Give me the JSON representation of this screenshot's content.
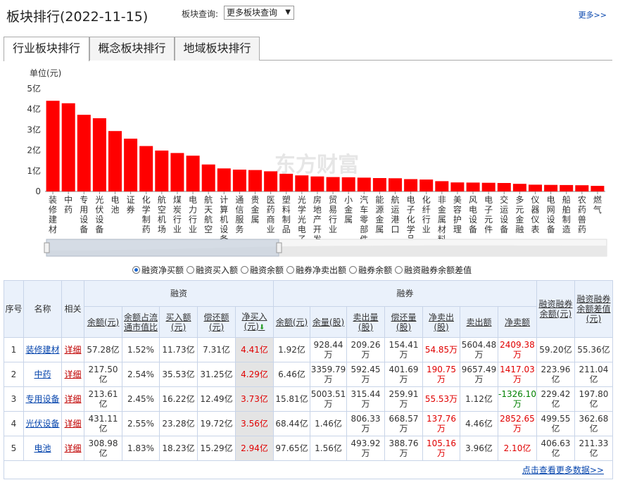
{
  "header": {
    "title": "板块排行(2022-11-15)",
    "query_label": "板块查询:",
    "query_select_value": "更多板块查询",
    "more_link": "更多>>"
  },
  "tabs": [
    "行业板块排行",
    "概念板块排行",
    "地域板块排行"
  ],
  "chart_data": {
    "type": "bar",
    "ylabel": "单位(元)",
    "ylim": [
      0,
      5
    ],
    "yticks": [
      "0",
      "1亿",
      "2亿",
      "3亿",
      "4亿",
      "5亿"
    ],
    "categories": [
      "装修建材",
      "中药",
      "专用设备",
      "光伏设备",
      "电池",
      "证券",
      "化学制药",
      "航空机场",
      "煤炭行业",
      "电力行业",
      "航天航空",
      "计算机设备",
      "通信服务",
      "贵金属",
      "医药商业",
      "塑料制品",
      "光学光电子",
      "房地产开发",
      "贸易行业",
      "小金属",
      "汽车零部件",
      "能源金属",
      "航运港口",
      "电子化学品",
      "化纤行业",
      "非金属材料",
      "美容护理",
      "风电设备",
      "电子元件",
      "交运设备",
      "多元金融",
      "仪器仪表",
      "电网设备",
      "船舶制造",
      "农药兽药",
      "燃气"
    ],
    "values": [
      4.41,
      4.29,
      3.73,
      3.56,
      2.94,
      2.57,
      2.21,
      1.99,
      1.87,
      1.74,
      1.31,
      1.12,
      1.06,
      1.04,
      0.98,
      0.86,
      0.78,
      0.73,
      0.7,
      0.69,
      0.67,
      0.65,
      0.64,
      0.6,
      0.58,
      0.5,
      0.44,
      0.43,
      0.42,
      0.41,
      0.37,
      0.33,
      0.32,
      0.31,
      0.3,
      0.27
    ],
    "bar_color": "#ff0000",
    "grid": false,
    "watermark": "东方财富"
  },
  "radios": [
    {
      "label": "融资净买额",
      "checked": true
    },
    {
      "label": "融资买入额",
      "checked": false
    },
    {
      "label": "融资余额",
      "checked": false
    },
    {
      "label": "融券净卖出额",
      "checked": false
    },
    {
      "label": "融券余额",
      "checked": false
    },
    {
      "label": "融资融券余额差值",
      "checked": false
    }
  ],
  "table": {
    "head": {
      "seq": "序号",
      "name": "名称",
      "related": "相关",
      "rz": "融资",
      "rq": "融券",
      "rzrq_balance": "融资融券余额(元)",
      "rzrq_diff": "融资融券余额差值(元)",
      "rz_cols": [
        "余额(元)",
        "余额占流通市值比",
        "买入额(元)",
        "偿还额(元)",
        "净买入(元)"
      ],
      "rq_cols": [
        "余额(元)",
        "余量(股)",
        "卖出量(股)",
        "偿还量(股)",
        "净卖出(股)",
        "卖出额",
        "净卖额"
      ]
    },
    "rows": [
      {
        "seq": "1",
        "name": "装修建材",
        "detail": "详细",
        "c": [
          "57.28亿",
          "1.52%",
          "11.73亿",
          "7.31亿",
          "4.41亿",
          "1.92亿",
          "928.44万",
          "209.26万",
          "154.41万",
          "54.85万",
          "5604.48万",
          "2409.38万",
          "59.20亿",
          "55.36亿"
        ]
      },
      {
        "seq": "2",
        "name": "中药",
        "detail": "详细",
        "c": [
          "217.50亿",
          "2.54%",
          "35.53亿",
          "31.25亿",
          "4.29亿",
          "6.46亿",
          "3359.79万",
          "592.45万",
          "401.69万",
          "190.75万",
          "9657.49万",
          "1417.03万",
          "223.96亿",
          "211.04亿"
        ]
      },
      {
        "seq": "3",
        "name": "专用设备",
        "detail": "详细",
        "c": [
          "213.61亿",
          "2.45%",
          "16.22亿",
          "12.49亿",
          "3.73亿",
          "15.81亿",
          "5003.51万",
          "315.44万",
          "259.91万",
          "55.53万",
          "1.12亿",
          "-1326.10万",
          "229.42亿",
          "197.80亿"
        ]
      },
      {
        "seq": "4",
        "name": "光伏设备",
        "detail": "详细",
        "c": [
          "431.11亿",
          "2.55%",
          "23.28亿",
          "19.72亿",
          "3.56亿",
          "68.44亿",
          "1.46亿",
          "806.33万",
          "668.57万",
          "137.76万",
          "4.46亿",
          "2852.65万",
          "499.55亿",
          "362.68亿"
        ]
      },
      {
        "seq": "5",
        "name": "电池",
        "detail": "详细",
        "c": [
          "308.98亿",
          "1.83%",
          "18.23亿",
          "15.29亿",
          "2.94亿",
          "97.65亿",
          "1.56亿",
          "493.92万",
          "388.76万",
          "105.16万",
          "3.96亿",
          "2.10亿",
          "406.63亿",
          "211.33亿"
        ]
      }
    ],
    "more_data_link": "点击查看更多数据>>"
  }
}
